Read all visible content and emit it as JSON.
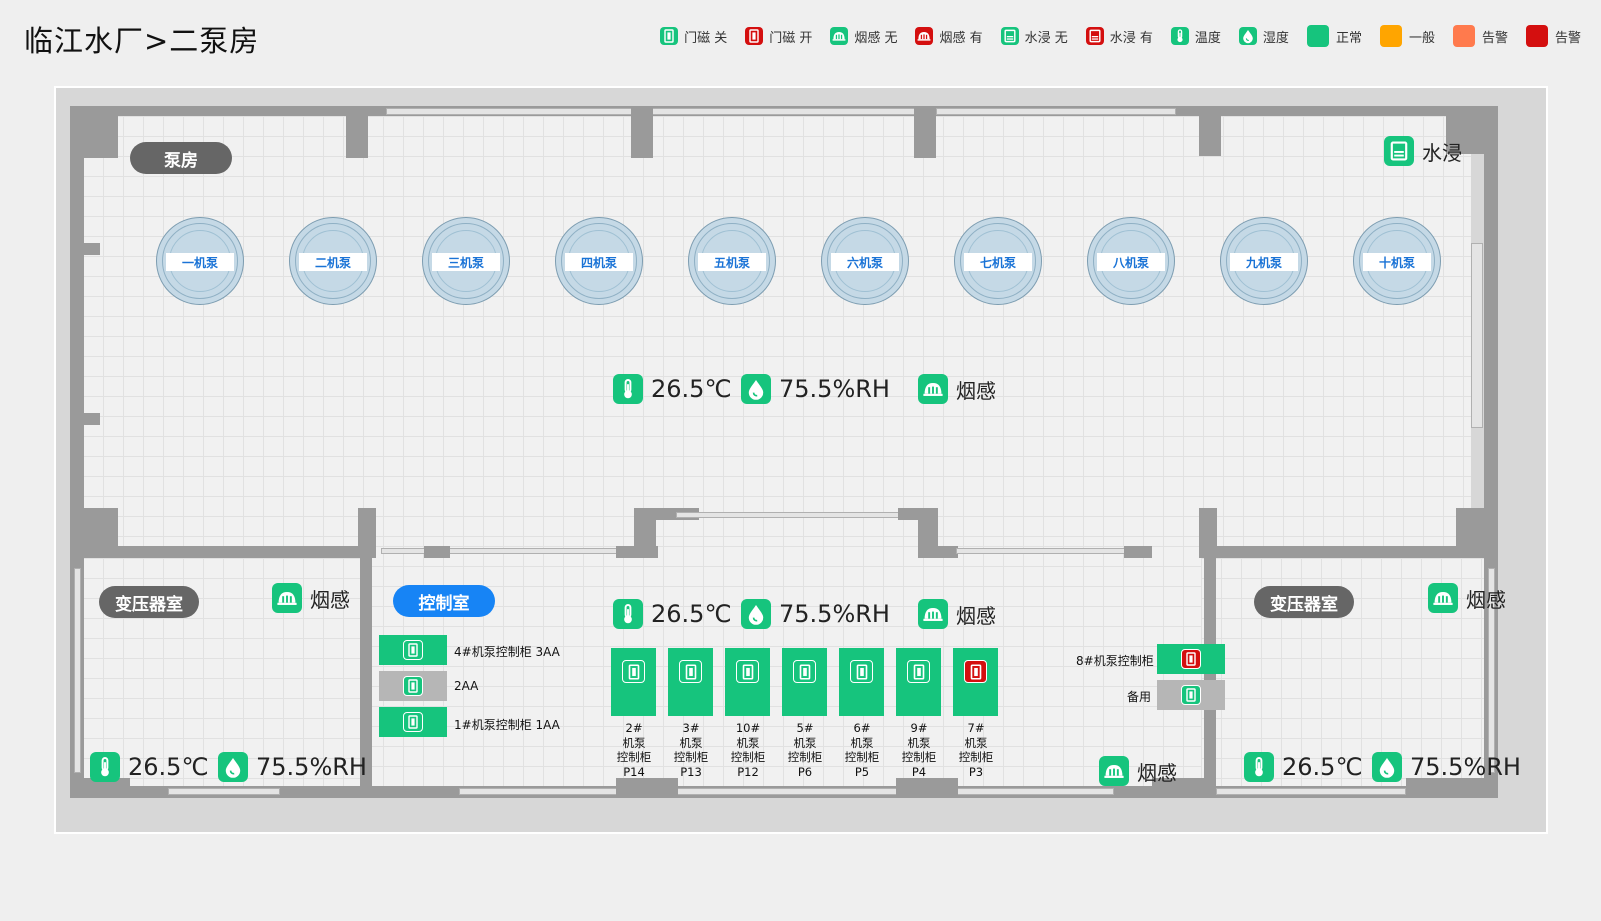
{
  "header": {
    "title": "临江水厂>二泵房"
  },
  "legend": [
    {
      "label": "门磁 关",
      "icon": "door-closed-icon",
      "color": "#16c47d"
    },
    {
      "label": "门磁 开",
      "icon": "door-open-icon",
      "color": "#d40f0f"
    },
    {
      "label": "烟感 无",
      "icon": "smoke-sensor-icon",
      "color": "#16c47d"
    },
    {
      "label": "烟感 有",
      "icon": "smoke-sensor-icon",
      "color": "#d40f0f"
    },
    {
      "label": "水浸 无",
      "icon": "water-leak-icon",
      "color": "#16c47d"
    },
    {
      "label": "水浸 有",
      "icon": "water-leak-icon",
      "color": "#d40f0f"
    },
    {
      "label": "温度",
      "icon": "thermometer-icon",
      "color": "#16c47d"
    },
    {
      "label": "湿度",
      "icon": "humidity-drop-icon",
      "color": "#16c47d"
    },
    {
      "label": "正常",
      "color": "#16c47d"
    },
    {
      "label": "一般",
      "color": "#ffa500"
    },
    {
      "label": "告警",
      "color": "#ff7a4d"
    },
    {
      "label": "告警",
      "color": "#d40f0f"
    }
  ],
  "rooms": {
    "pump_room": {
      "label": "泵房",
      "water_leak": "水浸",
      "temperature": "26.5℃",
      "humidity": "75.5%RH",
      "smoke": "烟感",
      "pumps": [
        "一机泵",
        "二机泵",
        "三机泵",
        "四机泵",
        "五机泵",
        "六机泵",
        "七机泵",
        "八机泵",
        "九机泵",
        "十机泵"
      ]
    },
    "transformer_left": {
      "label": "变压器室",
      "smoke": "烟感",
      "temperature": "26.5℃",
      "humidity": "75.5%RH"
    },
    "control_room": {
      "label": "控制室",
      "temperature": "26.5℃",
      "humidity": "75.5%RH",
      "smoke": "烟感",
      "smoke_bottom": "烟感",
      "side_cabinets": [
        {
          "label": "4#机泵控制柜 3AA",
          "status": "normal"
        },
        {
          "label": "2AA",
          "status": "inactive"
        },
        {
          "label": "1#机泵控制柜 1AA",
          "status": "normal"
        }
      ],
      "cabinets": [
        {
          "label": "2#\n机泵\n控制柜\nP14",
          "door": "closed"
        },
        {
          "label": "3#\n机泵\n控制柜\nP13",
          "door": "closed"
        },
        {
          "label": "10#\n机泵\n控制柜\nP12",
          "door": "closed"
        },
        {
          "label": "5#\n机泵\n控制柜\nP6",
          "door": "closed"
        },
        {
          "label": "6#\n机泵\n控制柜\nP5",
          "door": "closed"
        },
        {
          "label": "9#\n机泵\n控制柜\nP4",
          "door": "closed"
        },
        {
          "label": "7#\n机泵\n控制柜\nP3",
          "door": "open"
        }
      ],
      "right_cabinets": [
        {
          "label": "8#机泵控制柜",
          "status": "normal",
          "door": "open"
        },
        {
          "label": "备用",
          "status": "inactive",
          "door": "closed"
        }
      ]
    },
    "transformer_right": {
      "label": "变压器室",
      "smoke": "烟感",
      "temperature": "26.5℃",
      "humidity": "75.5%RH"
    }
  }
}
